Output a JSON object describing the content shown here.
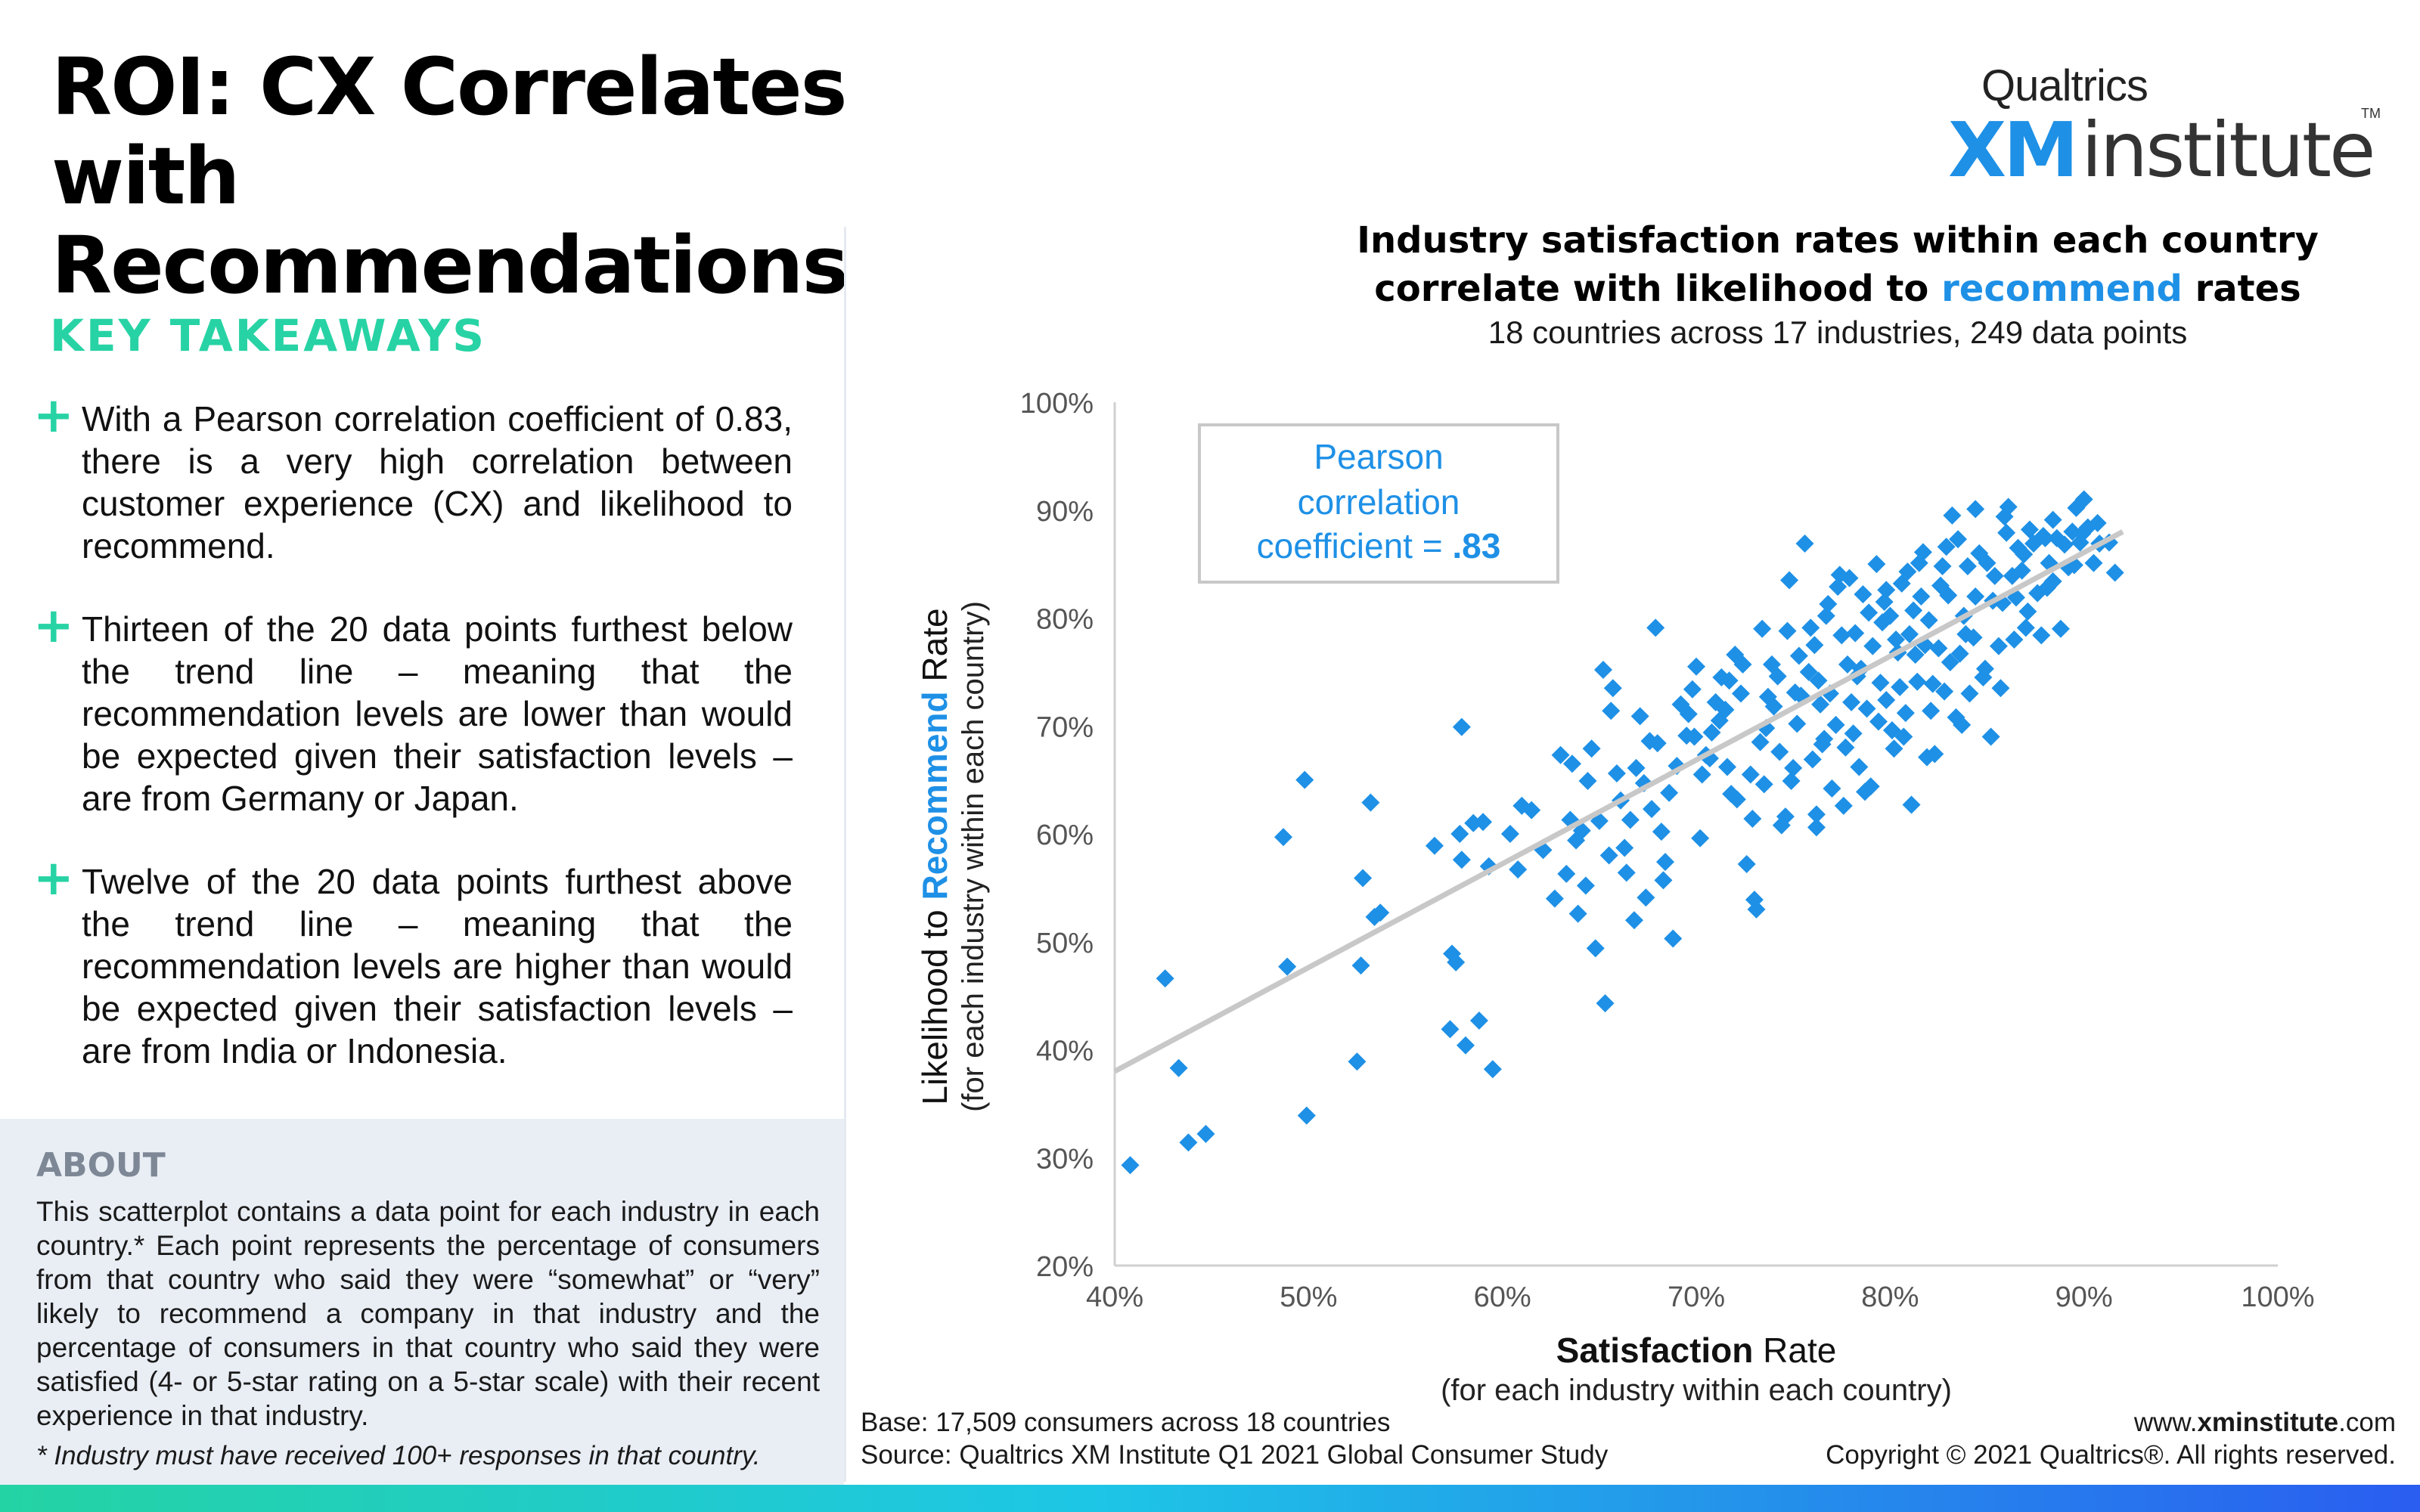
{
  "header": {
    "title": "ROI: CX Correlates with Recommendations",
    "logo_top": "Qualtrics",
    "logo_xm": "XM",
    "logo_institute": "institute",
    "logo_tm": "TM"
  },
  "takeaways": {
    "heading": "KEY TAKEAWAYS",
    "items": [
      "With a Pearson correlation coefficient of 0.83, there is a very high correlation between customer experience (CX) and likelihood to recommend.",
      "Thirteen of the 20 data points furthest below the trend line – meaning that the recommendation levels are lower than would be expected given their satisfaction levels – are from Germany or Japan.",
      "Twelve of the 20 data points furthest above the trend line – meaning that the recommendation levels are higher than would be expected given their satisfaction levels – are from India or Indonesia."
    ]
  },
  "about": {
    "heading": "ABOUT",
    "text": "This scatterplot contains a data point for each industry in each country.* Each point represents the percentage of consumers from that country who said they were “somewhat” or “very” likely to recommend a company in that industry and the percentage of consumers in that country who said they were satisfied (4- or 5-star rating on a 5-star scale) with their recent experience in that industry.",
    "note": "* Industry must have received 100+ responses in that country."
  },
  "chart_title": {
    "line1": "Industry satisfaction rates within each country",
    "line2_pre": "correlate with likelihood to ",
    "line2_hl": "recommend",
    "line2_post": " rates",
    "subtitle": "18 countries across 17 industries, 249 data points"
  },
  "footer": {
    "base": "Base: 17,509 consumers across 18 countries",
    "source": "Source: Qualtrics XM Institute Q1 2021 Global Consumer Study",
    "url_pre": "www.",
    "url_bold": "xminstitute",
    "url_post": ".com",
    "copyright": "Copyright © 2021 Qualtrics®. All rights reserved."
  },
  "colors": {
    "point": "#1e90e6",
    "trend": "#c8c8c8",
    "accent_green": "#27d3a4",
    "accent_blue": "#1e90e6"
  },
  "chart_data": {
    "type": "scatter",
    "xlabel_bold": "Satisfaction",
    "xlabel_rest": " Rate",
    "xlabel_sub": "(for each industry within each country)",
    "ylabel_pre": "Likelihood to ",
    "ylabel_bold": "Recommend",
    "ylabel_post": " Rate",
    "ylabel_sub": "(for each industry within each country)",
    "xlim": [
      40,
      100
    ],
    "ylim": [
      20,
      100
    ],
    "x_ticks": [
      "40%",
      "50%",
      "60%",
      "70%",
      "80%",
      "90%",
      "100%"
    ],
    "y_ticks": [
      "20%",
      "30%",
      "40%",
      "50%",
      "60%",
      "70%",
      "80%",
      "90%",
      "100%"
    ],
    "annotation": {
      "line1": "Pearson",
      "line2": "correlation",
      "line3": "coefficient = ",
      "value": ".83"
    },
    "pearson_r": 0.83,
    "trend_line": {
      "x": [
        40,
        92
      ],
      "y": [
        38,
        88
      ]
    },
    "points": [
      [
        40.8,
        29.3
      ],
      [
        42.6,
        46.6
      ],
      [
        43.3,
        38.3
      ],
      [
        43.8,
        31.4
      ],
      [
        44.7,
        32.2
      ],
      [
        48.7,
        59.7
      ],
      [
        48.9,
        47.7
      ],
      [
        49.8,
        65.0
      ],
      [
        49.9,
        33.9
      ],
      [
        52.5,
        38.9
      ],
      [
        52.7,
        47.8
      ],
      [
        52.8,
        55.9
      ],
      [
        53.2,
        62.9
      ],
      [
        53.4,
        52.3
      ],
      [
        53.7,
        52.7
      ],
      [
        56.5,
        58.9
      ],
      [
        57.3,
        41.9
      ],
      [
        57.4,
        48.9
      ],
      [
        57.6,
        48.1
      ],
      [
        57.8,
        60.0
      ],
      [
        57.9,
        57.6
      ],
      [
        57.9,
        69.9
      ],
      [
        58.1,
        40.4
      ],
      [
        58.8,
        42.7
      ],
      [
        59.0,
        61.1
      ],
      [
        59.5,
        38.2
      ],
      [
        60.8,
        56.7
      ],
      [
        61.0,
        62.6
      ],
      [
        61.5,
        62.2
      ],
      [
        62.7,
        54.0
      ],
      [
        63.0,
        67.3
      ],
      [
        63.3,
        56.3
      ],
      [
        63.5,
        61.3
      ],
      [
        63.6,
        66.5
      ],
      [
        63.9,
        52.6
      ],
      [
        64.1,
        60.3
      ],
      [
        64.3,
        55.2
      ],
      [
        64.6,
        67.9
      ],
      [
        64.8,
        49.4
      ],
      [
        65.0,
        61.2
      ],
      [
        65.2,
        75.2
      ],
      [
        65.3,
        44.3
      ],
      [
        65.5,
        58.0
      ],
      [
        65.7,
        73.5
      ],
      [
        65.9,
        65.6
      ],
      [
        66.1,
        63.1
      ],
      [
        66.3,
        58.7
      ],
      [
        66.6,
        61.3
      ],
      [
        66.8,
        52.0
      ],
      [
        67.1,
        70.9
      ],
      [
        67.3,
        64.7
      ],
      [
        67.4,
        54.1
      ],
      [
        67.6,
        68.6
      ],
      [
        67.9,
        79.1
      ],
      [
        68.0,
        68.4
      ],
      [
        68.2,
        60.2
      ],
      [
        68.4,
        57.4
      ],
      [
        68.8,
        50.3
      ],
      [
        69.0,
        66.3
      ],
      [
        69.2,
        72.0
      ],
      [
        69.5,
        69.1
      ],
      [
        69.8,
        73.4
      ],
      [
        70.0,
        75.5
      ],
      [
        70.3,
        65.5
      ],
      [
        70.5,
        67.3
      ],
      [
        70.8,
        69.4
      ],
      [
        71.0,
        72.2
      ],
      [
        71.2,
        70.5
      ],
      [
        71.5,
        71.5
      ],
      [
        71.7,
        74.2
      ],
      [
        72.0,
        76.6
      ],
      [
        72.1,
        63.2
      ],
      [
        72.3,
        73.0
      ],
      [
        72.6,
        57.2
      ],
      [
        72.8,
        65.5
      ],
      [
        73.0,
        53.9
      ],
      [
        73.1,
        53.0
      ],
      [
        73.3,
        68.5
      ],
      [
        73.5,
        64.6
      ],
      [
        73.7,
        72.7
      ],
      [
        74.0,
        71.8
      ],
      [
        74.2,
        74.6
      ],
      [
        74.4,
        60.8
      ],
      [
        74.6,
        61.6
      ],
      [
        74.8,
        83.5
      ],
      [
        75.0,
        66.1
      ],
      [
        75.2,
        70.2
      ],
      [
        75.4,
        72.8
      ],
      [
        75.6,
        86.9
      ],
      [
        75.8,
        75.0
      ],
      [
        76.0,
        66.9
      ],
      [
        76.1,
        77.5
      ],
      [
        76.2,
        61.8
      ],
      [
        76.3,
        74.2
      ],
      [
        76.5,
        68.3
      ],
      [
        76.7,
        80.2
      ],
      [
        76.9,
        73.0
      ],
      [
        77.0,
        64.2
      ],
      [
        77.2,
        70.1
      ],
      [
        77.3,
        82.9
      ],
      [
        77.5,
        78.4
      ],
      [
        77.6,
        62.6
      ],
      [
        77.8,
        75.7
      ],
      [
        78.0,
        72.2
      ],
      [
        78.1,
        69.3
      ],
      [
        78.2,
        78.6
      ],
      [
        78.4,
        66.2
      ],
      [
        78.5,
        75.3
      ],
      [
        78.6,
        82.2
      ],
      [
        78.8,
        71.6
      ],
      [
        79.0,
        64.4
      ],
      [
        79.1,
        77.4
      ],
      [
        79.3,
        85.0
      ],
      [
        79.5,
        74.0
      ],
      [
        79.6,
        79.6
      ],
      [
        79.8,
        72.4
      ],
      [
        80.0,
        80.2
      ],
      [
        80.1,
        69.6
      ],
      [
        80.2,
        67.9
      ],
      [
        80.4,
        76.8
      ],
      [
        80.5,
        73.6
      ],
      [
        80.6,
        83.2
      ],
      [
        80.8,
        71.2
      ],
      [
        81.0,
        78.5
      ],
      [
        81.1,
        62.7
      ],
      [
        81.2,
        80.7
      ],
      [
        81.4,
        74.1
      ],
      [
        81.5,
        85.1
      ],
      [
        81.6,
        82.0
      ],
      [
        81.8,
        77.5
      ],
      [
        82.0,
        79.8
      ],
      [
        82.1,
        71.4
      ],
      [
        82.3,
        67.4
      ],
      [
        82.5,
        77.2
      ],
      [
        82.7,
        84.8
      ],
      [
        82.8,
        73.2
      ],
      [
        83.0,
        82.1
      ],
      [
        83.1,
        75.9
      ],
      [
        83.2,
        89.5
      ],
      [
        83.4,
        70.8
      ],
      [
        83.5,
        87.3
      ],
      [
        83.6,
        76.7
      ],
      [
        83.8,
        80.2
      ],
      [
        84.0,
        84.8
      ],
      [
        84.1,
        73.0
      ],
      [
        84.3,
        78.2
      ],
      [
        84.4,
        82.0
      ],
      [
        84.6,
        86.0
      ],
      [
        84.8,
        74.5
      ],
      [
        85.0,
        85.1
      ],
      [
        85.2,
        69.0
      ],
      [
        85.4,
        83.9
      ],
      [
        85.6,
        77.4
      ],
      [
        85.8,
        81.4
      ],
      [
        86.0,
        87.9
      ],
      [
        86.1,
        90.3
      ],
      [
        86.3,
        83.9
      ],
      [
        86.5,
        81.9
      ],
      [
        86.6,
        86.5
      ],
      [
        86.8,
        84.4
      ],
      [
        87.0,
        79.1
      ],
      [
        87.2,
        88.2
      ],
      [
        87.4,
        86.9
      ],
      [
        87.6,
        82.3
      ],
      [
        87.8,
        78.4
      ],
      [
        88.0,
        87.4
      ],
      [
        88.2,
        85.1
      ],
      [
        88.4,
        83.4
      ],
      [
        88.6,
        87.4
      ],
      [
        88.8,
        79.0
      ],
      [
        89.0,
        86.8
      ],
      [
        89.2,
        84.7
      ],
      [
        89.4,
        88.0
      ],
      [
        89.6,
        90.2
      ],
      [
        89.8,
        87.0
      ],
      [
        90.0,
        91.0
      ],
      [
        90.2,
        88.4
      ],
      [
        90.5,
        85.1
      ],
      [
        90.8,
        86.9
      ],
      [
        91.3,
        87.0
      ],
      [
        91.6,
        84.2
      ],
      [
        76.6,
        68.8
      ],
      [
        71.8,
        63.7
      ],
      [
        75.9,
        79.1
      ],
      [
        79.4,
        70.4
      ],
      [
        81.9,
        67.1
      ],
      [
        84.9,
        75.3
      ],
      [
        86.4,
        78.0
      ],
      [
        74.3,
        67.6
      ],
      [
        78.9,
        80.5
      ],
      [
        80.9,
        84.3
      ],
      [
        73.9,
        75.7
      ],
      [
        77.9,
        83.7
      ],
      [
        82.2,
        73.9
      ],
      [
        85.3,
        81.6
      ],
      [
        87.1,
        80.6
      ],
      [
        88.4,
        89.1
      ],
      [
        83.7,
        70.1
      ],
      [
        79.8,
        82.6
      ],
      [
        76.4,
        72.0
      ],
      [
        71.6,
        66.2
      ],
      [
        69.6,
        71.1
      ],
      [
        74.7,
        78.8
      ],
      [
        77.7,
        68.0
      ],
      [
        81.3,
        76.6
      ],
      [
        83.9,
        78.5
      ],
      [
        86.9,
        85.9
      ],
      [
        89.9,
        87.8
      ],
      [
        85.7,
        73.5
      ],
      [
        82.6,
        83.0
      ],
      [
        80.3,
        78.0
      ],
      [
        78.3,
        74.6
      ],
      [
        76.8,
        81.3
      ],
      [
        75.3,
        76.5
      ],
      [
        73.6,
        69.8
      ],
      [
        72.4,
        75.7
      ],
      [
        70.7,
        67.0
      ],
      [
        68.6,
        63.8
      ],
      [
        66.9,
        66.1
      ],
      [
        65.6,
        71.4
      ],
      [
        64.4,
        64.9
      ],
      [
        63.8,
        59.4
      ],
      [
        62.1,
        58.5
      ],
      [
        60.4,
        60.0
      ],
      [
        59.3,
        57.0
      ],
      [
        58.5,
        61.0
      ],
      [
        84.4,
        90.1
      ],
      [
        87.9,
        87.6
      ],
      [
        81.7,
        86.1
      ],
      [
        79.7,
        81.5
      ],
      [
        77.4,
        84.0
      ],
      [
        75.1,
        73.1
      ],
      [
        73.4,
        79.0
      ],
      [
        71.3,
        74.5
      ],
      [
        69.9,
        69.0
      ],
      [
        67.7,
        62.3
      ],
      [
        66.4,
        56.4
      ],
      [
        82.9,
        86.6
      ],
      [
        80.7,
        69.0
      ],
      [
        78.7,
        63.9
      ],
      [
        76.2,
        60.6
      ],
      [
        74.9,
        64.9
      ],
      [
        72.9,
        61.4
      ],
      [
        70.2,
        59.6
      ],
      [
        68.3,
        55.7
      ],
      [
        85.9,
        89.4
      ],
      [
        88.1,
        82.8
      ],
      [
        89.5,
        84.9
      ],
      [
        90.7,
        88.8
      ]
    ]
  }
}
